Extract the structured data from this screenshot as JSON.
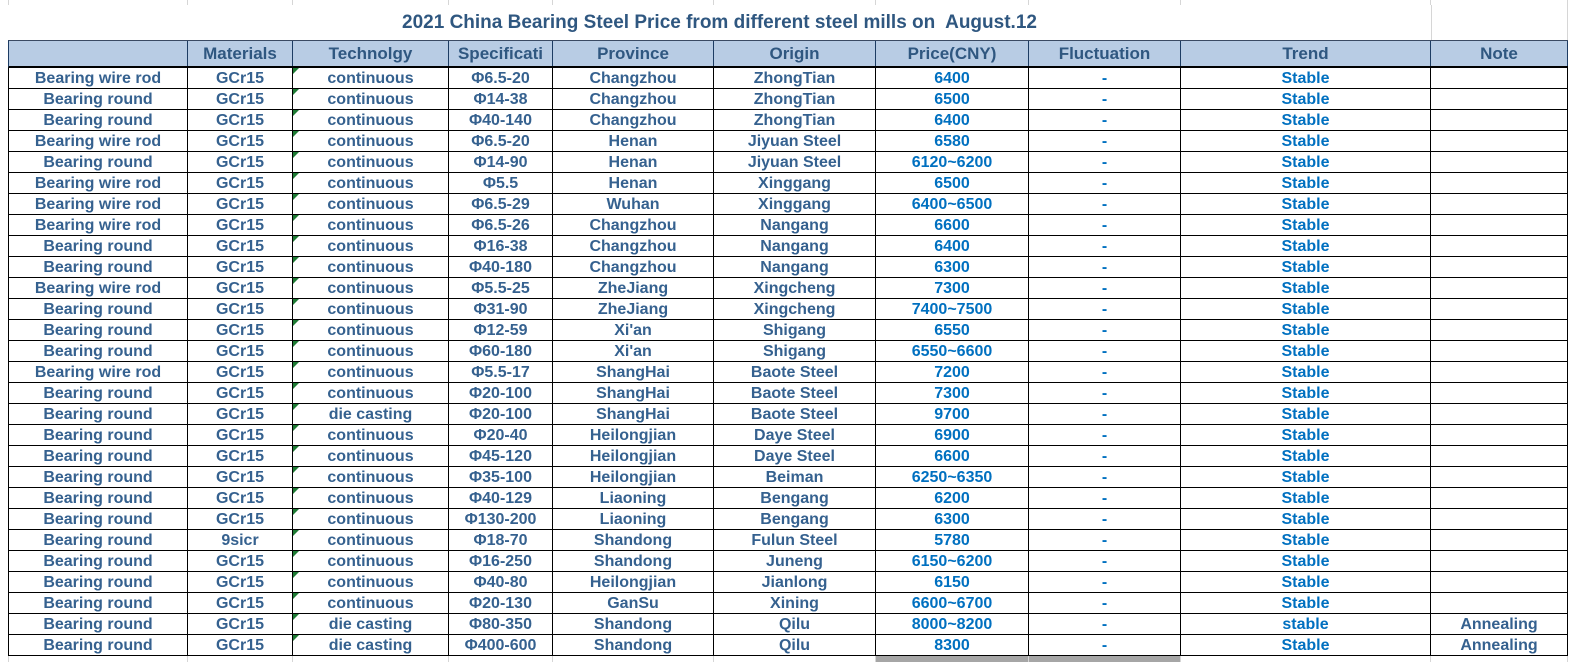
{
  "title": "2021 China Bearing Steel Price from different steel mills on  August.12",
  "table": {
    "columns": [
      "",
      "Materials",
      "Technolgy",
      "Specificati",
      "Province",
      "Origin",
      "Price(CNY)",
      "Fluctuation",
      "Trend",
      "Note"
    ],
    "rows": [
      {
        "name": "Bearing wire rod",
        "material": "GCr15",
        "technology": "continuous",
        "spec": "Φ6.5-20",
        "province": "Changzhou",
        "origin": "ZhongTian",
        "price": "6400",
        "fluctuation": "-",
        "trend": "Stable",
        "note": ""
      },
      {
        "name": "Bearing round",
        "material": "GCr15",
        "technology": "continuous",
        "spec": "Φ14-38",
        "province": "Changzhou",
        "origin": "ZhongTian",
        "price": "6500",
        "fluctuation": "-",
        "trend": "Stable",
        "note": ""
      },
      {
        "name": "Bearing round",
        "material": "GCr15",
        "technology": "continuous",
        "spec": "Φ40-140",
        "province": "Changzhou",
        "origin": "ZhongTian",
        "price": "6400",
        "fluctuation": "-",
        "trend": "Stable",
        "note": ""
      },
      {
        "name": "Bearing wire rod",
        "material": "GCr15",
        "technology": "continuous",
        "spec": "Φ6.5-20",
        "province": "Henan",
        "origin": "Jiyuan Steel",
        "price": "6580",
        "fluctuation": "-",
        "trend": "Stable",
        "note": ""
      },
      {
        "name": "Bearing round",
        "material": "GCr15",
        "technology": "continuous",
        "spec": "Φ14-90",
        "province": "Henan",
        "origin": "Jiyuan Steel",
        "price": "6120~6200",
        "fluctuation": "-",
        "trend": "Stable",
        "note": ""
      },
      {
        "name": "Bearing wire rod",
        "material": "GCr15",
        "technology": "continuous",
        "spec": "Φ5.5",
        "province": "Henan",
        "origin": "Xinggang",
        "price": "6500",
        "fluctuation": "-",
        "trend": "Stable",
        "note": ""
      },
      {
        "name": "Bearing wire rod",
        "material": "GCr15",
        "technology": "continuous",
        "spec": "Φ6.5-29",
        "province": "Wuhan",
        "origin": "Xinggang",
        "price": "6400~6500",
        "fluctuation": "-",
        "trend": "Stable",
        "note": ""
      },
      {
        "name": "Bearing wire rod",
        "material": "GCr15",
        "technology": "continuous",
        "spec": "Φ6.5-26",
        "province": "Changzhou",
        "origin": "Nangang",
        "price": "6600",
        "fluctuation": "-",
        "trend": "Stable",
        "note": ""
      },
      {
        "name": "Bearing round",
        "material": "GCr15",
        "technology": "continuous",
        "spec": "Φ16-38",
        "province": "Changzhou",
        "origin": "Nangang",
        "price": "6400",
        "fluctuation": "-",
        "trend": "Stable",
        "note": ""
      },
      {
        "name": "Bearing round",
        "material": "GCr15",
        "technology": "continuous",
        "spec": "Φ40-180",
        "province": "Changzhou",
        "origin": "Nangang",
        "price": "6300",
        "fluctuation": "-",
        "trend": "Stable",
        "note": ""
      },
      {
        "name": "Bearing wire rod",
        "material": "GCr15",
        "technology": "continuous",
        "spec": "Φ5.5-25",
        "province": "ZheJiang",
        "origin": "Xingcheng",
        "price": "7300",
        "fluctuation": "-",
        "trend": "Stable",
        "note": ""
      },
      {
        "name": "Bearing round",
        "material": "GCr15",
        "technology": "continuous",
        "spec": "Φ31-90",
        "province": "ZheJiang",
        "origin": "Xingcheng",
        "price": "7400~7500",
        "fluctuation": "-",
        "trend": "Stable",
        "note": ""
      },
      {
        "name": "Bearing round",
        "material": "GCr15",
        "technology": "continuous",
        "spec": "Φ12-59",
        "province": "Xi'an",
        "origin": "Shigang",
        "price": "6550",
        "fluctuation": "-",
        "trend": "Stable",
        "note": ""
      },
      {
        "name": "Bearing round",
        "material": "GCr15",
        "technology": "continuous",
        "spec": "Φ60-180",
        "province": "Xi'an",
        "origin": "Shigang",
        "price": "6550~6600",
        "fluctuation": "-",
        "trend": "Stable",
        "note": ""
      },
      {
        "name": "Bearing wire rod",
        "material": "GCr15",
        "technology": "continuous",
        "spec": "Φ5.5-17",
        "province": "ShangHai",
        "origin": "Baote Steel",
        "price": "7200",
        "fluctuation": "-",
        "trend": "Stable",
        "note": ""
      },
      {
        "name": "Bearing round",
        "material": "GCr15",
        "technology": "continuous",
        "spec": "Φ20-100",
        "province": "ShangHai",
        "origin": "Baote Steel",
        "price": "7300",
        "fluctuation": "-",
        "trend": "Stable",
        "note": ""
      },
      {
        "name": "Bearing round",
        "material": "GCr15",
        "technology": "die casting",
        "spec": "Φ20-100",
        "province": "ShangHai",
        "origin": "Baote Steel",
        "price": "9700",
        "fluctuation": "-",
        "trend": "Stable",
        "note": ""
      },
      {
        "name": "Bearing round",
        "material": "GCr15",
        "technology": "continuous",
        "spec": "Φ20-40",
        "province": "Heilongjian",
        "origin": "Daye Steel",
        "price": "6900",
        "fluctuation": "-",
        "trend": "Stable",
        "note": ""
      },
      {
        "name": "Bearing round",
        "material": "GCr15",
        "technology": "continuous",
        "spec": "Φ45-120",
        "province": "Heilongjian",
        "origin": "Daye Steel",
        "price": "6600",
        "fluctuation": "-",
        "trend": "Stable",
        "note": ""
      },
      {
        "name": "Bearing round",
        "material": "GCr15",
        "technology": "continuous",
        "spec": "Φ35-100",
        "province": "Heilongjian",
        "origin": "Beiman",
        "price": "6250~6350",
        "fluctuation": "-",
        "trend": "Stable",
        "note": ""
      },
      {
        "name": "Bearing round",
        "material": "GCr15",
        "technology": "continuous",
        "spec": "Φ40-129",
        "province": "Liaoning",
        "origin": "Bengang",
        "price": "6200",
        "fluctuation": "-",
        "trend": "Stable",
        "note": ""
      },
      {
        "name": "Bearing round",
        "material": "GCr15",
        "technology": "continuous",
        "spec": "Φ130-200",
        "province": "Liaoning",
        "origin": "Bengang",
        "price": "6300",
        "fluctuation": "-",
        "trend": "Stable",
        "note": ""
      },
      {
        "name": "Bearing round",
        "material": "9sicr",
        "technology": "continuous",
        "spec": "Φ18-70",
        "province": "Shandong",
        "origin": "Fulun Steel",
        "price": "5780",
        "fluctuation": "-",
        "trend": "Stable",
        "note": ""
      },
      {
        "name": "Bearing round",
        "material": "GCr15",
        "technology": "continuous",
        "spec": "Φ16-250",
        "province": "Shandong",
        "origin": "Juneng",
        "price": "6150~6200",
        "fluctuation": "-",
        "trend": "Stable",
        "note": ""
      },
      {
        "name": "Bearing round",
        "material": "GCr15",
        "technology": "continuous",
        "spec": "Φ40-80",
        "province": "Heilongjian",
        "origin": "Jianlong",
        "price": "6150",
        "fluctuation": "-",
        "trend": "Stable",
        "note": ""
      },
      {
        "name": "Bearing round",
        "material": "GCr15",
        "technology": "continuous",
        "spec": "Φ20-130",
        "province": "GanSu",
        "origin": "Xining",
        "price": "6600~6700",
        "fluctuation": "-",
        "trend": "Stable",
        "note": ""
      },
      {
        "name": "Bearing round",
        "material": "GCr15",
        "technology": "die casting",
        "spec": "Φ80-350",
        "province": "Shandong",
        "origin": "Qilu",
        "price": "8000~8200",
        "fluctuation": "-",
        "trend": "stable",
        "note": "Annealing"
      },
      {
        "name": "Bearing round",
        "material": "GCr15",
        "technology": "die casting",
        "spec": "Φ400-600",
        "province": "Shandong",
        "origin": "Qilu",
        "price": "8300",
        "fluctuation": "-",
        "trend": "Stable",
        "note": "Annealing"
      }
    ]
  },
  "colors": {
    "header_bg": "#b8cce4",
    "dark_text": "#35618f",
    "title_text": "#2f5780",
    "price_blue": "#0070c0",
    "gridline": "#000000",
    "error_triangle_green": "#1e7b34",
    "selection_gray": "#a6a6a6"
  }
}
